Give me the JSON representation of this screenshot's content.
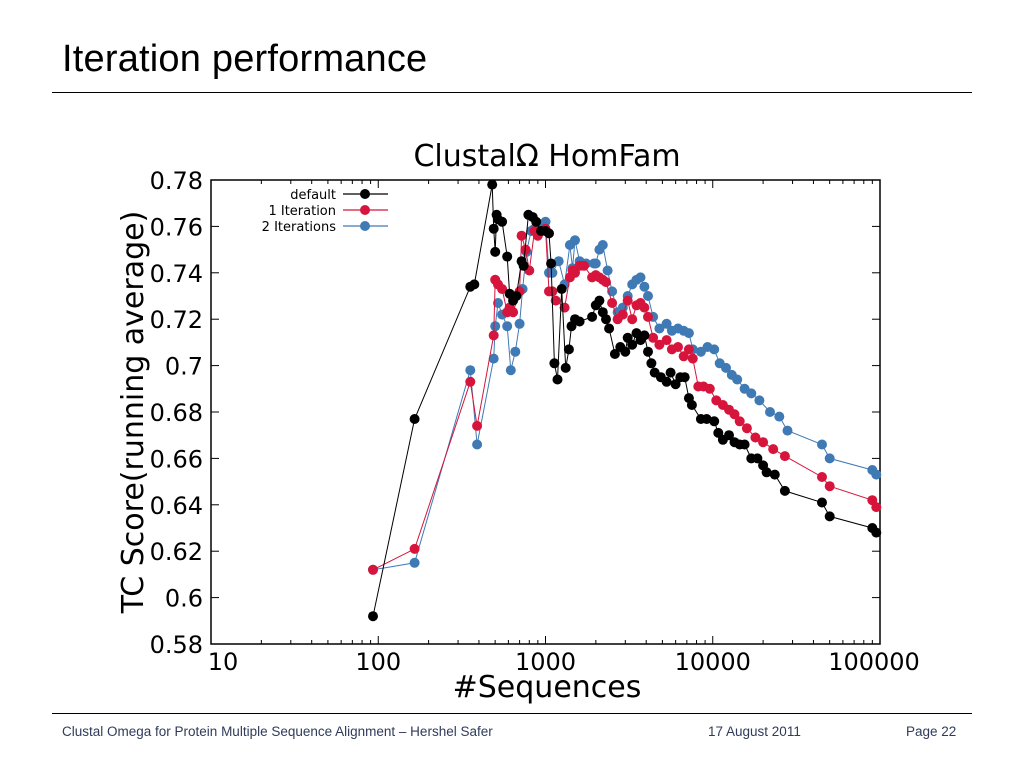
{
  "slide": {
    "title": "Iteration performance",
    "footer_left": "Clustal Omega for Protein Multiple Sequence Alignment – Hershel Safer",
    "footer_date": "17 August 2011",
    "footer_page": "Page 22"
  },
  "chart_data": {
    "type": "line",
    "title": "ClustalΩ HomFam",
    "xlabel": "#Sequences",
    "ylabel": "TC Score(running average)",
    "x_scale": "log",
    "xlim": [
      10,
      100000
    ],
    "ylim": [
      0.58,
      0.78
    ],
    "x_ticks": [
      {
        "value": 10,
        "label": "10"
      },
      {
        "value": 100,
        "label": "100"
      },
      {
        "value": 1000,
        "label": "1000"
      },
      {
        "value": 10000,
        "label": "10000"
      },
      {
        "value": 100000,
        "label": "100000"
      }
    ],
    "y_ticks": [
      {
        "value": 0.58,
        "label": "0.58"
      },
      {
        "value": 0.6,
        "label": "0.6"
      },
      {
        "value": 0.62,
        "label": "0.62"
      },
      {
        "value": 0.64,
        "label": "0.64"
      },
      {
        "value": 0.66,
        "label": "0.66"
      },
      {
        "value": 0.68,
        "label": "0.68"
      },
      {
        "value": 0.7,
        "label": "0.7"
      },
      {
        "value": 0.72,
        "label": "0.72"
      },
      {
        "value": 0.74,
        "label": "0.74"
      },
      {
        "value": 0.76,
        "label": "0.76"
      },
      {
        "value": 0.78,
        "label": "0.78"
      }
    ],
    "legend_position": "top-left",
    "grid": false,
    "series": [
      {
        "name": "default",
        "color": "#000000",
        "points": [
          [
            93,
            0.592
          ],
          [
            165,
            0.677
          ],
          [
            355,
            0.734
          ],
          [
            375,
            0.735
          ],
          [
            480,
            0.778
          ],
          [
            490,
            0.759
          ],
          [
            500,
            0.749
          ],
          [
            510,
            0.765
          ],
          [
            520,
            0.763
          ],
          [
            550,
            0.762
          ],
          [
            590,
            0.747
          ],
          [
            610,
            0.731
          ],
          [
            640,
            0.728
          ],
          [
            670,
            0.73
          ],
          [
            720,
            0.745
          ],
          [
            740,
            0.743
          ],
          [
            790,
            0.765
          ],
          [
            840,
            0.764
          ],
          [
            880,
            0.762
          ],
          [
            940,
            0.758
          ],
          [
            1000,
            0.758
          ],
          [
            1050,
            0.757
          ],
          [
            1080,
            0.744
          ],
          [
            1130,
            0.701
          ],
          [
            1180,
            0.694
          ],
          [
            1250,
            0.733
          ],
          [
            1320,
            0.699
          ],
          [
            1380,
            0.707
          ],
          [
            1430,
            0.717
          ],
          [
            1500,
            0.72
          ],
          [
            1600,
            0.719
          ],
          [
            1900,
            0.721
          ],
          [
            2000,
            0.726
          ],
          [
            2100,
            0.728
          ],
          [
            2200,
            0.723
          ],
          [
            2300,
            0.72
          ],
          [
            2400,
            0.716
          ],
          [
            2600,
            0.705
          ],
          [
            2800,
            0.708
          ],
          [
            3000,
            0.706
          ],
          [
            3100,
            0.712
          ],
          [
            3300,
            0.709
          ],
          [
            3500,
            0.714
          ],
          [
            3700,
            0.711
          ],
          [
            3900,
            0.713
          ],
          [
            4100,
            0.706
          ],
          [
            4300,
            0.701
          ],
          [
            4500,
            0.697
          ],
          [
            4900,
            0.695
          ],
          [
            5300,
            0.693
          ],
          [
            5600,
            0.697
          ],
          [
            6000,
            0.692
          ],
          [
            6400,
            0.695
          ],
          [
            6800,
            0.695
          ],
          [
            7200,
            0.686
          ],
          [
            7500,
            0.683
          ],
          [
            8500,
            0.677
          ],
          [
            9200,
            0.677
          ],
          [
            10200,
            0.676
          ],
          [
            10800,
            0.671
          ],
          [
            11500,
            0.668
          ],
          [
            12500,
            0.67
          ],
          [
            13500,
            0.667
          ],
          [
            14500,
            0.666
          ],
          [
            15500,
            0.666
          ],
          [
            17000,
            0.66
          ],
          [
            18500,
            0.66
          ],
          [
            20000,
            0.657
          ],
          [
            21000,
            0.654
          ],
          [
            23500,
            0.653
          ],
          [
            27000,
            0.646
          ],
          [
            45000,
            0.641
          ],
          [
            50000,
            0.635
          ],
          [
            90000,
            0.63
          ],
          [
            95000,
            0.628
          ]
        ]
      },
      {
        "name": "1 Iteration",
        "color": "#d7143c",
        "points": [
          [
            93,
            0.612
          ],
          [
            165,
            0.621
          ],
          [
            355,
            0.693
          ],
          [
            390,
            0.674
          ],
          [
            490,
            0.713
          ],
          [
            500,
            0.737
          ],
          [
            520,
            0.735
          ],
          [
            550,
            0.733
          ],
          [
            590,
            0.723
          ],
          [
            610,
            0.725
          ],
          [
            640,
            0.723
          ],
          [
            700,
            0.732
          ],
          [
            720,
            0.756
          ],
          [
            760,
            0.75
          ],
          [
            800,
            0.741
          ],
          [
            860,
            0.758
          ],
          [
            900,
            0.756
          ],
          [
            950,
            0.758
          ],
          [
            1000,
            0.759
          ],
          [
            1050,
            0.732
          ],
          [
            1100,
            0.732
          ],
          [
            1150,
            0.728
          ],
          [
            1300,
            0.725
          ],
          [
            1400,
            0.738
          ],
          [
            1450,
            0.741
          ],
          [
            1500,
            0.74
          ],
          [
            1600,
            0.743
          ],
          [
            1700,
            0.743
          ],
          [
            1900,
            0.738
          ],
          [
            2000,
            0.739
          ],
          [
            2100,
            0.738
          ],
          [
            2200,
            0.737
          ],
          [
            2300,
            0.736
          ],
          [
            2500,
            0.727
          ],
          [
            2700,
            0.72
          ],
          [
            2900,
            0.722
          ],
          [
            3100,
            0.728
          ],
          [
            3300,
            0.72
          ],
          [
            3500,
            0.726
          ],
          [
            3700,
            0.727
          ],
          [
            3900,
            0.725
          ],
          [
            4100,
            0.721
          ],
          [
            4400,
            0.712
          ],
          [
            4800,
            0.709
          ],
          [
            5300,
            0.711
          ],
          [
            5700,
            0.707
          ],
          [
            6200,
            0.708
          ],
          [
            6700,
            0.704
          ],
          [
            7200,
            0.707
          ],
          [
            7600,
            0.703
          ],
          [
            8200,
            0.691
          ],
          [
            8800,
            0.691
          ],
          [
            9600,
            0.69
          ],
          [
            10500,
            0.685
          ],
          [
            11500,
            0.683
          ],
          [
            12500,
            0.681
          ],
          [
            13500,
            0.679
          ],
          [
            14500,
            0.676
          ],
          [
            16000,
            0.673
          ],
          [
            18000,
            0.669
          ],
          [
            20000,
            0.667
          ],
          [
            23000,
            0.664
          ],
          [
            27000,
            0.661
          ],
          [
            45000,
            0.652
          ],
          [
            50000,
            0.648
          ],
          [
            90000,
            0.642
          ],
          [
            95000,
            0.639
          ]
        ]
      },
      {
        "name": "2 Iterations",
        "color": "#3f7ab5",
        "points": [
          [
            93,
            0.612
          ],
          [
            165,
            0.615
          ],
          [
            355,
            0.698
          ],
          [
            390,
            0.666
          ],
          [
            490,
            0.703
          ],
          [
            500,
            0.717
          ],
          [
            520,
            0.727
          ],
          [
            550,
            0.722
          ],
          [
            590,
            0.717
          ],
          [
            620,
            0.698
          ],
          [
            660,
            0.706
          ],
          [
            700,
            0.718
          ],
          [
            730,
            0.733
          ],
          [
            770,
            0.749
          ],
          [
            820,
            0.758
          ],
          [
            860,
            0.759
          ],
          [
            900,
            0.758
          ],
          [
            950,
            0.761
          ],
          [
            1000,
            0.762
          ],
          [
            1050,
            0.74
          ],
          [
            1100,
            0.74
          ],
          [
            1200,
            0.745
          ],
          [
            1300,
            0.735
          ],
          [
            1400,
            0.752
          ],
          [
            1450,
            0.742
          ],
          [
            1500,
            0.754
          ],
          [
            1600,
            0.745
          ],
          [
            1750,
            0.744
          ],
          [
            1950,
            0.744
          ],
          [
            2000,
            0.744
          ],
          [
            2100,
            0.75
          ],
          [
            2200,
            0.752
          ],
          [
            2350,
            0.741
          ],
          [
            2500,
            0.732
          ],
          [
            2700,
            0.723
          ],
          [
            2900,
            0.725
          ],
          [
            3100,
            0.73
          ],
          [
            3300,
            0.735
          ],
          [
            3500,
            0.737
          ],
          [
            3700,
            0.738
          ],
          [
            3900,
            0.734
          ],
          [
            4100,
            0.73
          ],
          [
            4400,
            0.721
          ],
          [
            4800,
            0.716
          ],
          [
            5300,
            0.718
          ],
          [
            5700,
            0.715
          ],
          [
            6200,
            0.716
          ],
          [
            6700,
            0.715
          ],
          [
            7200,
            0.714
          ],
          [
            7600,
            0.707
          ],
          [
            8500,
            0.706
          ],
          [
            9300,
            0.708
          ],
          [
            10200,
            0.707
          ],
          [
            11000,
            0.701
          ],
          [
            12000,
            0.699
          ],
          [
            13000,
            0.696
          ],
          [
            14000,
            0.694
          ],
          [
            15500,
            0.69
          ],
          [
            17000,
            0.688
          ],
          [
            19000,
            0.685
          ],
          [
            22000,
            0.68
          ],
          [
            25000,
            0.678
          ],
          [
            28000,
            0.672
          ],
          [
            45000,
            0.666
          ],
          [
            50000,
            0.66
          ],
          [
            90000,
            0.655
          ],
          [
            95000,
            0.653
          ]
        ]
      }
    ]
  }
}
